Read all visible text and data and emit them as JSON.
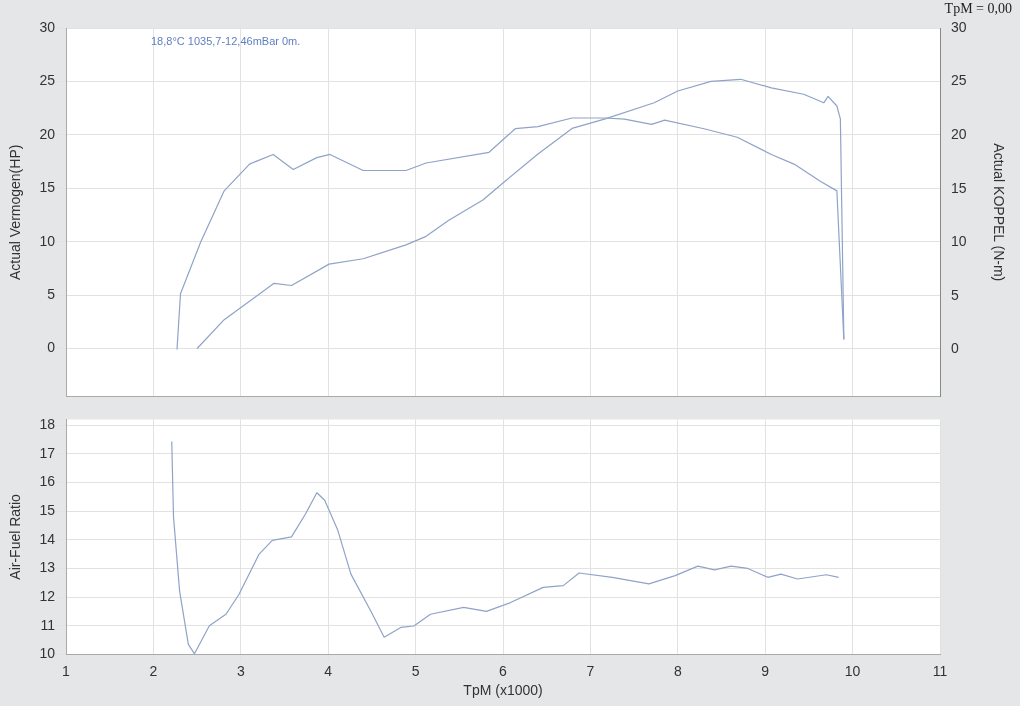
{
  "chart_data": [
    {
      "type": "line",
      "ylabel": "Actual Vermogen(HP)",
      "y2label": "Actual KOPPEL (N-m)",
      "annotations": [
        "18,8°C 1035,7-12,46mBar 0m.",
        "TpM = 0,00"
      ],
      "xlim": [
        1,
        11
      ],
      "xticks": [
        1,
        2,
        3,
        4,
        5,
        6,
        7,
        8,
        9,
        10,
        11
      ],
      "ylim": [
        -4.5,
        30
      ],
      "yticks": [
        0,
        5,
        10,
        15,
        20,
        25,
        30
      ],
      "y2lim": [
        -4.4,
        30
      ],
      "y2ticks": [
        0,
        5,
        10,
        15,
        20,
        25,
        30
      ],
      "grid": true,
      "tick_labels": "y",
      "series": [
        {
          "color": "#8fa3c8",
          "x": [
            2.5,
            2.81,
            3.38,
            3.58,
            4.01,
            4.4,
            4.89,
            5.12,
            5.38,
            5.77,
            6.03,
            6.4,
            6.79,
            7.17,
            7.73,
            8.0,
            8.38,
            8.72,
            9.07,
            9.44,
            9.67,
            9.72,
            9.82,
            9.86,
            9.9
          ],
          "values": [
            0,
            2.7,
            6.1,
            5.9,
            7.9,
            8.4,
            9.7,
            10.5,
            12,
            13.9,
            15.7,
            18.2,
            20.6,
            21.5,
            23,
            24.1,
            25,
            25.2,
            24.4,
            23.8,
            23,
            23.6,
            22.7,
            21.5,
            0.9
          ]
        },
        {
          "color": "#8fa3c8",
          "axis": "y2",
          "x": [
            2.27,
            2.31,
            2.54,
            2.81,
            3.1,
            3.37,
            3.6,
            3.87,
            4.02,
            4.4,
            4.89,
            5.12,
            5.84,
            6.14,
            6.4,
            6.79,
            7.17,
            7.39,
            7.7,
            7.85,
            8.3,
            8.68,
            9.07,
            9.33,
            9.63,
            9.82,
            9.9
          ],
          "values": [
            0,
            5.2,
            10,
            14.8,
            17.3,
            18.2,
            16.8,
            17.9,
            18.2,
            16.7,
            16.7,
            17.4,
            18.4,
            20.6,
            20.8,
            21.6,
            21.6,
            21.5,
            21.0,
            21.4,
            20.6,
            19.8,
            18.2,
            17.3,
            15.7,
            14.8,
            0.9
          ]
        }
      ]
    },
    {
      "type": "line",
      "xlabel": "TpM (x1000)",
      "ylabel": "Air-Fuel Ratio",
      "xlim": [
        1,
        11
      ],
      "xticks": [
        1,
        2,
        3,
        4,
        5,
        6,
        7,
        8,
        9,
        10,
        11
      ],
      "ylim": [
        10,
        18.2
      ],
      "yticks": [
        10,
        11,
        12,
        13,
        14,
        15,
        16,
        17,
        18
      ],
      "grid": true,
      "series": [
        {
          "color": "#8fa3c8",
          "x": [
            2.21,
            2.23,
            2.3,
            2.4,
            2.47,
            2.64,
            2.83,
            2.98,
            3.21,
            3.36,
            3.58,
            3.74,
            3.87,
            3.96,
            4.11,
            4.26,
            4.49,
            4.64,
            4.83,
            4.98,
            5.17,
            5.55,
            5.81,
            6.08,
            6.46,
            6.69,
            6.87,
            7.25,
            7.67,
            7.97,
            8.23,
            8.42,
            8.61,
            8.8,
            9.03,
            9.18,
            9.37,
            9.7,
            9.84
          ],
          "values": [
            17.43,
            14.8,
            12.2,
            10.35,
            10.02,
            11.0,
            11.4,
            12.1,
            13.5,
            13.98,
            14.1,
            14.9,
            15.64,
            15.38,
            14.33,
            12.8,
            11.5,
            10.6,
            10.94,
            10.99,
            11.4,
            11.64,
            11.5,
            11.8,
            12.34,
            12.4,
            12.84,
            12.69,
            12.46,
            12.75,
            13.08,
            12.95,
            13.08,
            13.0,
            12.69,
            12.8,
            12.63,
            12.78,
            12.69
          ]
        }
      ]
    }
  ]
}
